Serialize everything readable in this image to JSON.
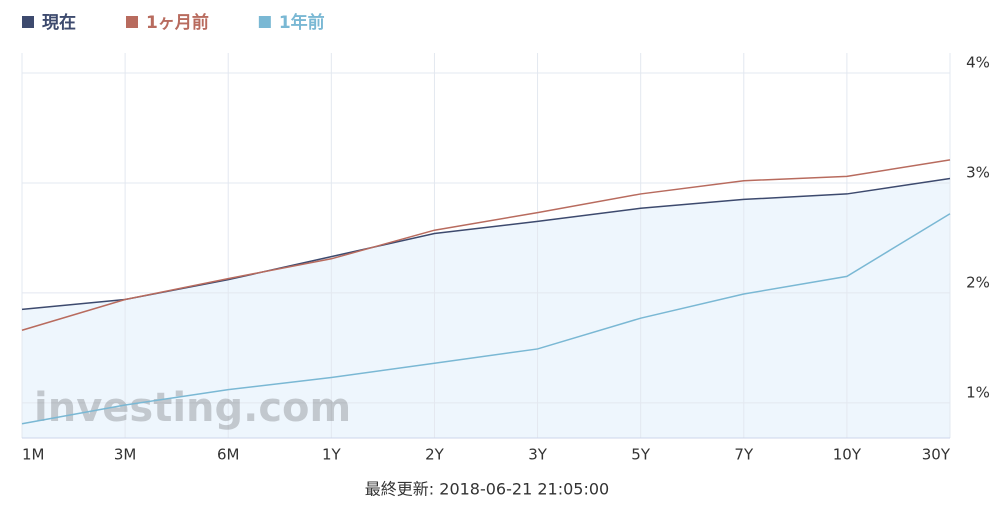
{
  "chart_data": {
    "type": "line",
    "categories": [
      "1M",
      "3M",
      "6M",
      "1Y",
      "2Y",
      "3Y",
      "5Y",
      "7Y",
      "10Y",
      "30Y"
    ],
    "series": [
      {
        "name": "現在",
        "color": "#3d4a6e",
        "values": [
          1.85,
          1.94,
          2.12,
          2.33,
          2.54,
          2.65,
          2.77,
          2.85,
          2.9,
          3.04
        ]
      },
      {
        "name": "1ヶ月前",
        "color": "#b86b5e",
        "values": [
          1.66,
          1.94,
          2.13,
          2.31,
          2.57,
          2.73,
          2.9,
          3.02,
          3.06,
          3.21
        ]
      },
      {
        "name": "1年前",
        "color": "#7ab8d4",
        "values": [
          0.81,
          0.98,
          1.12,
          1.23,
          1.36,
          1.49,
          1.77,
          1.99,
          2.15,
          2.72
        ]
      }
    ],
    "ylim": [
      0.68,
      4
    ],
    "yticks": [
      {
        "value": 1,
        "label": "1%"
      },
      {
        "value": 2,
        "label": "2%"
      },
      {
        "value": 3,
        "label": "3%"
      },
      {
        "value": 4,
        "label": "4%"
      }
    ],
    "grid": true,
    "area_series": 0,
    "watermark": "investing.com",
    "footer": "最終更新: 2018-06-21 21:05:00"
  }
}
